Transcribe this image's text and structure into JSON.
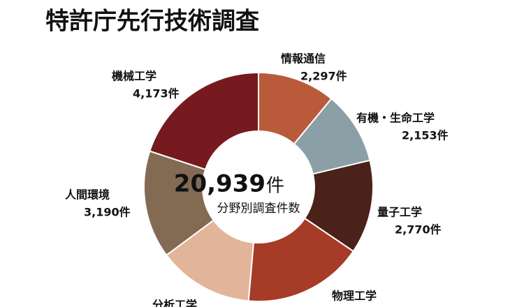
{
  "chart_data": {
    "type": "donut",
    "title": "特許庁先行技術調査",
    "categories": [
      "情報通信",
      "有機・生命工学",
      "量子工学",
      "物理工学",
      "分析工学",
      "人間環境",
      "機械工学"
    ],
    "values": [
      2297,
      2153,
      2770,
      3540,
      2816,
      3190,
      4173
    ],
    "value_labels": [
      "2,297件",
      "2,153件",
      "2,770件",
      null,
      null,
      "3,190件",
      "4,173件"
    ],
    "colors": [
      "#b95b3b",
      "#8aa0a6",
      "#4a2219",
      "#a63b27",
      "#e2b59b",
      "#836b53",
      "#761a20"
    ],
    "center_value": "20,939",
    "center_unit": "件",
    "center_caption": "分野別調査件数"
  }
}
